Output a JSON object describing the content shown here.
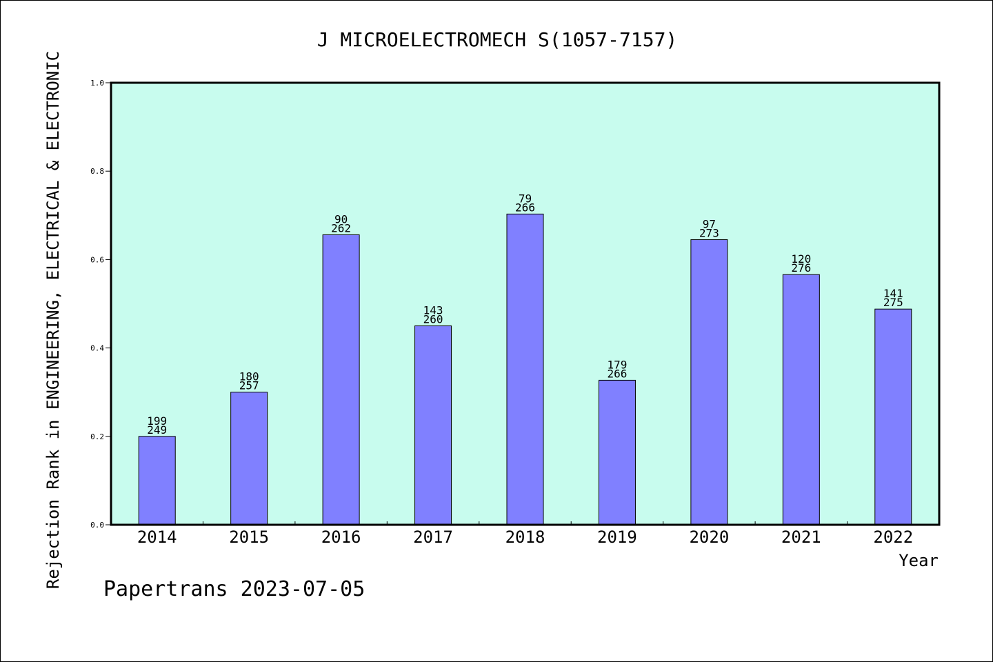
{
  "chart_data": {
    "type": "bar",
    "title": "J MICROELECTROMECH S(1057-7157)",
    "xlabel": "Year",
    "ylabel": "Rejection Rank in ENGINEERING, ELECTRICAL & ELECTRONIC",
    "ylim": [
      0,
      1.0
    ],
    "yticks": [
      "0.0",
      "0.2",
      "0.4",
      "0.6",
      "0.8",
      "1.0"
    ],
    "categories": [
      "2014",
      "2015",
      "2016",
      "2017",
      "2018",
      "2019",
      "2020",
      "2021",
      "2022"
    ],
    "values": [
      0.2,
      0.3,
      0.656,
      0.45,
      0.703,
      0.327,
      0.645,
      0.566,
      0.488
    ],
    "label_top": [
      "199",
      "180",
      "90",
      "143",
      "79",
      "179",
      "97",
      "120",
      "141"
    ],
    "label_bottom": [
      "249",
      "257",
      "262",
      "260",
      "266",
      "266",
      "273",
      "276",
      "275"
    ],
    "grid": false,
    "colors": {
      "plot_bg": "#c8fcee",
      "bar": "#8080ff",
      "bar_edge": "#000000"
    }
  },
  "footer": {
    "text": "Papertrans 2023-07-05"
  }
}
